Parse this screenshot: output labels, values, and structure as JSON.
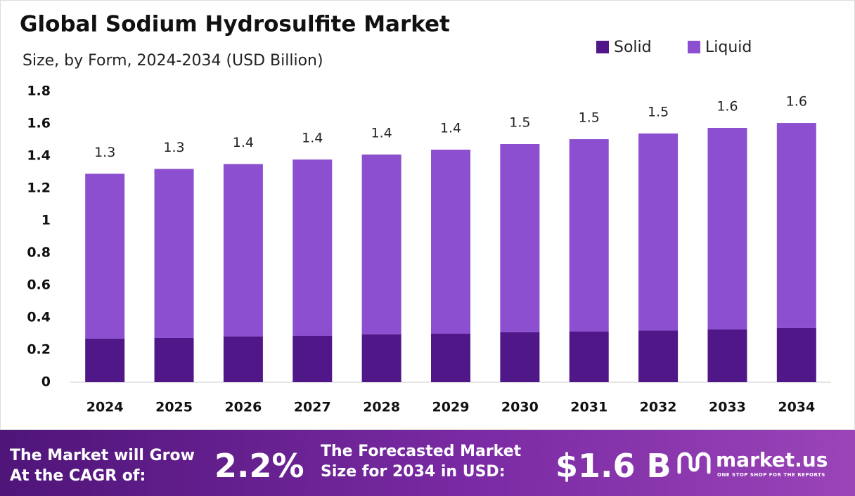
{
  "chart_data": {
    "type": "stacked-bar",
    "title": "Global Sodium Hydrosulfite Market",
    "subtitle": "Size, by Form, 2024-2034 (USD Billion)",
    "categories": [
      "2024",
      "2025",
      "2026",
      "2027",
      "2028",
      "2029",
      "2030",
      "2031",
      "2032",
      "2033",
      "2034"
    ],
    "series": [
      {
        "name": "Solid",
        "color": "#4f1787",
        "values": [
          0.27,
          0.274,
          0.283,
          0.287,
          0.296,
          0.3,
          0.309,
          0.313,
          0.32,
          0.326,
          0.335
        ]
      },
      {
        "name": "Liquid",
        "color": "#8b4fcf",
        "values": [
          1.02,
          1.046,
          1.067,
          1.091,
          1.113,
          1.139,
          1.165,
          1.191,
          1.219,
          1.248,
          1.269
        ]
      }
    ],
    "stack_labels": [
      1.3,
      1.3,
      1.4,
      1.4,
      1.4,
      1.4,
      1.5,
      1.5,
      1.5,
      1.6,
      1.6
    ],
    "ylim": [
      0,
      1.8
    ],
    "yticks": [
      0,
      0.2,
      0.4,
      0.6,
      0.8,
      1,
      1.2,
      1.4,
      1.6,
      1.8
    ],
    "legend": "top-right"
  },
  "footer": {
    "cagr_text": "The Market will Grow At the CAGR of:",
    "cagr_value": "2.2%",
    "forecast_text": "The Forecasted Market Size for 2034 in USD:",
    "forecast_value": "$1.6 B",
    "brand": "market.us",
    "tagline": "ONE STOP SHOP FOR THE REPORTS"
  }
}
